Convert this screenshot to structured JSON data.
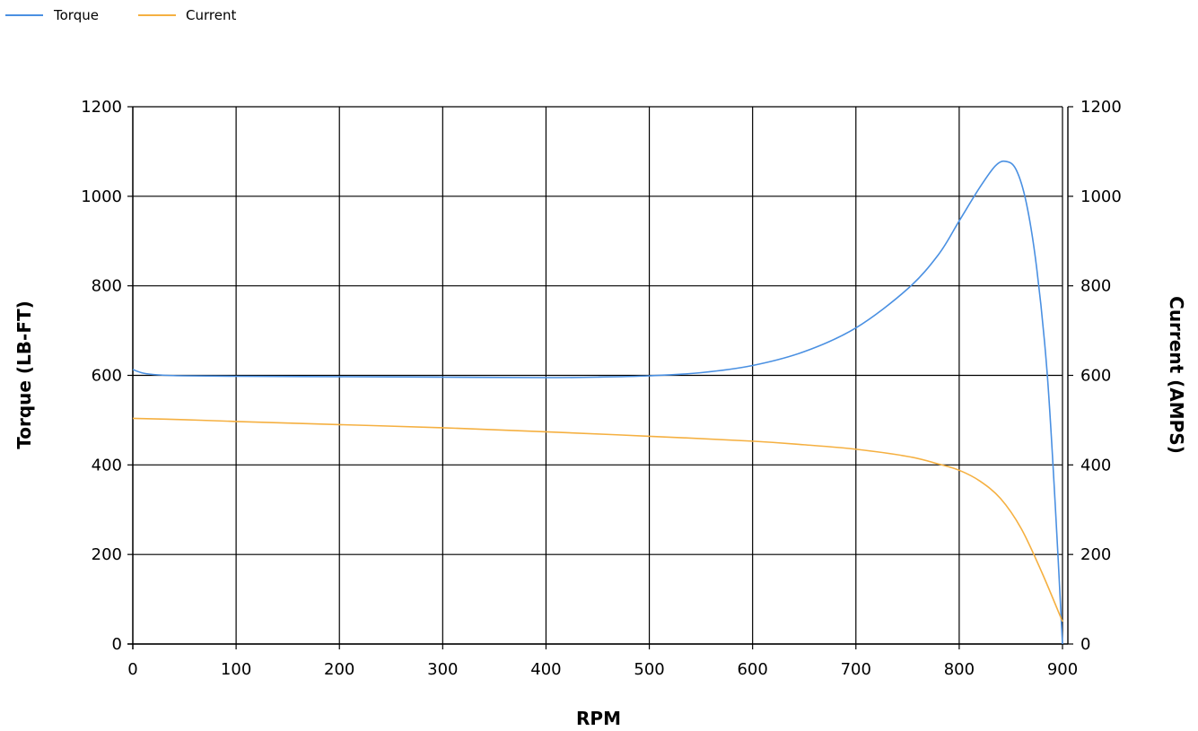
{
  "chart_data": {
    "type": "line",
    "title": "",
    "xlabel": "RPM",
    "ylabel_left": "Torque (LB-FT)",
    "ylabel_right": "Current (AMPS)",
    "xlim": [
      0,
      900
    ],
    "ylim_left": [
      0,
      1200
    ],
    "ylim_right": [
      0,
      1200
    ],
    "x_ticks": [
      "0",
      "100",
      "200",
      "300",
      "400",
      "500",
      "600",
      "700",
      "800",
      "900"
    ],
    "y_ticks_left": [
      "0",
      "200",
      "400",
      "600",
      "800",
      "1000",
      "1200"
    ],
    "y_ticks_right": [
      "0",
      "200",
      "400",
      "600",
      "800",
      "1000",
      "1200"
    ],
    "grid": true,
    "legend_position": "top-left",
    "series": [
      {
        "name": "Torque",
        "color": "#4a90e2",
        "axis": "left",
        "x": [
          0,
          10,
          25,
          50,
          100,
          200,
          300,
          400,
          450,
          500,
          550,
          600,
          650,
          700,
          750,
          780,
          800,
          820,
          835,
          845,
          855,
          865,
          875,
          885,
          893,
          900
        ],
        "y": [
          613,
          605,
          601,
          599,
          598,
          597,
          596,
          595,
          596,
          599,
          606,
          622,
          653,
          706,
          793,
          870,
          945,
          1020,
          1068,
          1078,
          1060,
          985,
          840,
          610,
          310,
          0
        ]
      },
      {
        "name": "Current",
        "color": "#f5b041",
        "axis": "right",
        "x": [
          0,
          50,
          100,
          200,
          300,
          400,
          500,
          600,
          650,
          700,
          750,
          780,
          800,
          820,
          840,
          860,
          880,
          900
        ],
        "y": [
          504,
          501,
          497,
          490,
          483,
          474,
          464,
          453,
          445,
          435,
          419,
          402,
          388,
          364,
          325,
          258,
          160,
          50
        ]
      }
    ]
  }
}
